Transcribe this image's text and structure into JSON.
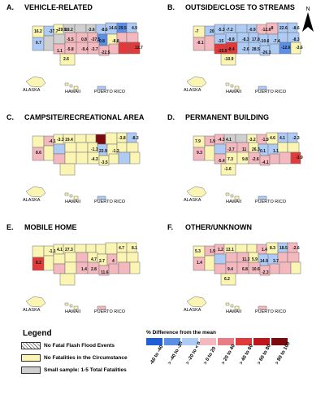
{
  "panels": [
    {
      "letter": "A.",
      "title": "VEHICLE-RELATED",
      "labels": [
        "18.2",
        "6.7",
        "-8.8",
        "-22.5",
        "-29.9",
        "4.9",
        "0.8",
        "-3.7",
        "-37.7",
        "29.5",
        "-37.5",
        "-9.4",
        "16.2",
        "14.6",
        "0.8",
        "-5.8",
        "2.6",
        "-8.6",
        "-5.5",
        "1.1",
        "12.7",
        "-3.6"
      ],
      "fills": {
        "hatch": [],
        "gray": [
          3,
          4,
          5,
          11,
          12
        ],
        "lightblue": [
          1,
          6,
          7,
          9,
          10
        ],
        "blue": [
          8,
          16
        ],
        "pink": [
          13,
          14,
          15,
          18,
          19,
          20,
          21,
          22,
          23,
          24,
          25
        ],
        "red": [
          26,
          27
        ],
        "pr": "lightblue"
      }
    },
    {
      "letter": "B.",
      "title": "OUTSIDE/CLOSE TO STREAMS",
      "labels": [
        "-7.2",
        "-8.1",
        "-7.4",
        "-26.3",
        "-5.3",
        "-8.6",
        "-10.6",
        "28.5",
        "20",
        "22.6",
        "17.8",
        "-2.6",
        "-7",
        "-8",
        "-8.3",
        "-8.4",
        "-10.9",
        "-12.6",
        "-8.8",
        "-15.5",
        "-3.6",
        "-0.9",
        "-15",
        "-8.3",
        "-12.6"
      ],
      "fills": {
        "hatch": [],
        "gray": [],
        "lightblue": [
          1,
          2,
          3,
          4,
          5,
          8,
          9,
          12,
          13,
          14,
          15,
          16,
          17,
          18,
          19,
          22,
          23,
          24,
          25
        ],
        "blue": [
          26
        ],
        "pink": [
          6,
          7,
          10,
          11
        ],
        "red": [
          20,
          21
        ],
        "pr": "lightblue"
      }
    },
    {
      "letter": "C.",
      "title": "CAMPSITE/RECREATIONAL AREA",
      "labels": [
        "19.4",
        "8.6",
        "-1.3",
        "-3.5",
        "-3.3",
        "-8.3",
        "22.9",
        "-4.3",
        "-4.1",
        "-3.8",
        "-1.3"
      ],
      "fills": {
        "hatch": [],
        "gray": [],
        "lightblue": [
          9,
          12,
          16,
          26
        ],
        "blue": [],
        "pink": [
          1,
          10,
          20
        ],
        "red": [],
        "darkred": [
          6
        ],
        "pr": "lightblue"
      }
    },
    {
      "letter": "D.",
      "title": "PERMANENT BUILDING",
      "labels": [
        "4.1",
        "9.3",
        "1.1",
        "-4.1",
        "-4.3",
        "-2.3",
        "0.1",
        "-2.6",
        "1.9",
        "4.1",
        "26.3",
        "9.8",
        "7.9",
        "4.6",
        "11",
        "7.3",
        "-1.6",
        "-1.9",
        "-3.7",
        "-5.4",
        "-3.9",
        "-3.2"
      ],
      "fills": {
        "hatch": [],
        "gray": [
          3,
          4
        ],
        "lightblue": [
          8,
          9,
          12,
          16,
          17
        ],
        "blue": [],
        "pink": [
          1,
          2,
          6,
          10,
          13,
          14,
          20,
          23,
          24,
          25,
          26
        ],
        "red": [
          27
        ],
        "darkred": [],
        "pr": "lightblue"
      }
    },
    {
      "letter": "E.",
      "title": "MOBILE HOME",
      "labels": [
        "27.3",
        "8.2",
        "4",
        "11.6",
        "4.1",
        "8.1",
        "2.7",
        "2.8",
        "-1.1",
        "4.7",
        "4.7",
        "1.4"
      ],
      "fills": {
        "hatch": [],
        "gray": [],
        "lightblue": [],
        "blue": [],
        "pink": [
          14,
          17,
          20,
          22,
          23,
          24,
          25,
          26
        ],
        "red": [
          10
        ],
        "darkred": [],
        "pr": "pink"
      }
    },
    {
      "letter": "F.",
      "title": "OTHER/UNKNOWN",
      "labels": [
        "13.1",
        "1.4",
        "3.7",
        "-2.3",
        "1.2",
        "-2.6",
        "14.9",
        "10.6",
        "1.9",
        "18.5",
        "5.9",
        "6.8",
        "5.3",
        "8.3",
        "11.3",
        "9.4",
        "6.2",
        "1.4"
      ],
      "fills": {
        "hatch": [],
        "gray": [],
        "lightblue": [
          8,
          12,
          16,
          17
        ],
        "blue": [],
        "pink": [
          1,
          2,
          6,
          9,
          10,
          13,
          14,
          18,
          19,
          20,
          21,
          22,
          23,
          24,
          25,
          26
        ],
        "red": [],
        "darkred": [],
        "pr": "pink"
      }
    }
  ],
  "inset_labels": {
    "alaska": "ALASKA",
    "hawaii": "HAWAII",
    "puerto_rico": "PUERTO RICO"
  },
  "north_label": "N",
  "legend": {
    "title": "Legend",
    "items": [
      {
        "label": "No Fatal Flash Flood Events",
        "style": "hatch"
      },
      {
        "label": "No Fatalities in the Circumstance",
        "color": "#fbf5b4"
      },
      {
        "label": "Small sample: 1-5 Total Fatalities",
        "color": "#cfcfcf"
      }
    ],
    "scale_title": "% Difference from the mean",
    "scale": [
      {
        "label": "-60 to -40",
        "color": "#1f5fd6"
      },
      {
        "label": "> -40 to -20",
        "color": "#5b8fe6"
      },
      {
        "label": "> -20 to < 0",
        "color": "#aecbf5"
      },
      {
        "label": "> 0 to 20",
        "color": "#f4b9bf"
      },
      {
        "label": "> 20 to 40",
        "color": "#ea7c86"
      },
      {
        "label": "> 40 to 60",
        "color": "#e03a3a"
      },
      {
        "label": "> 60 to 80",
        "color": "#c0161b"
      },
      {
        "label": "> 80 to 100",
        "color": "#7a0a0e"
      }
    ]
  },
  "colors": {
    "noFatal": "#fbf5b4",
    "gray": "#cfcfcf",
    "lightblue": "#aecbf5",
    "blue": "#5b8fe6",
    "pink": "#f4b9bf",
    "red": "#e03a3a",
    "darkred": "#7a0a0e",
    "border": "#6d6d6d"
  }
}
